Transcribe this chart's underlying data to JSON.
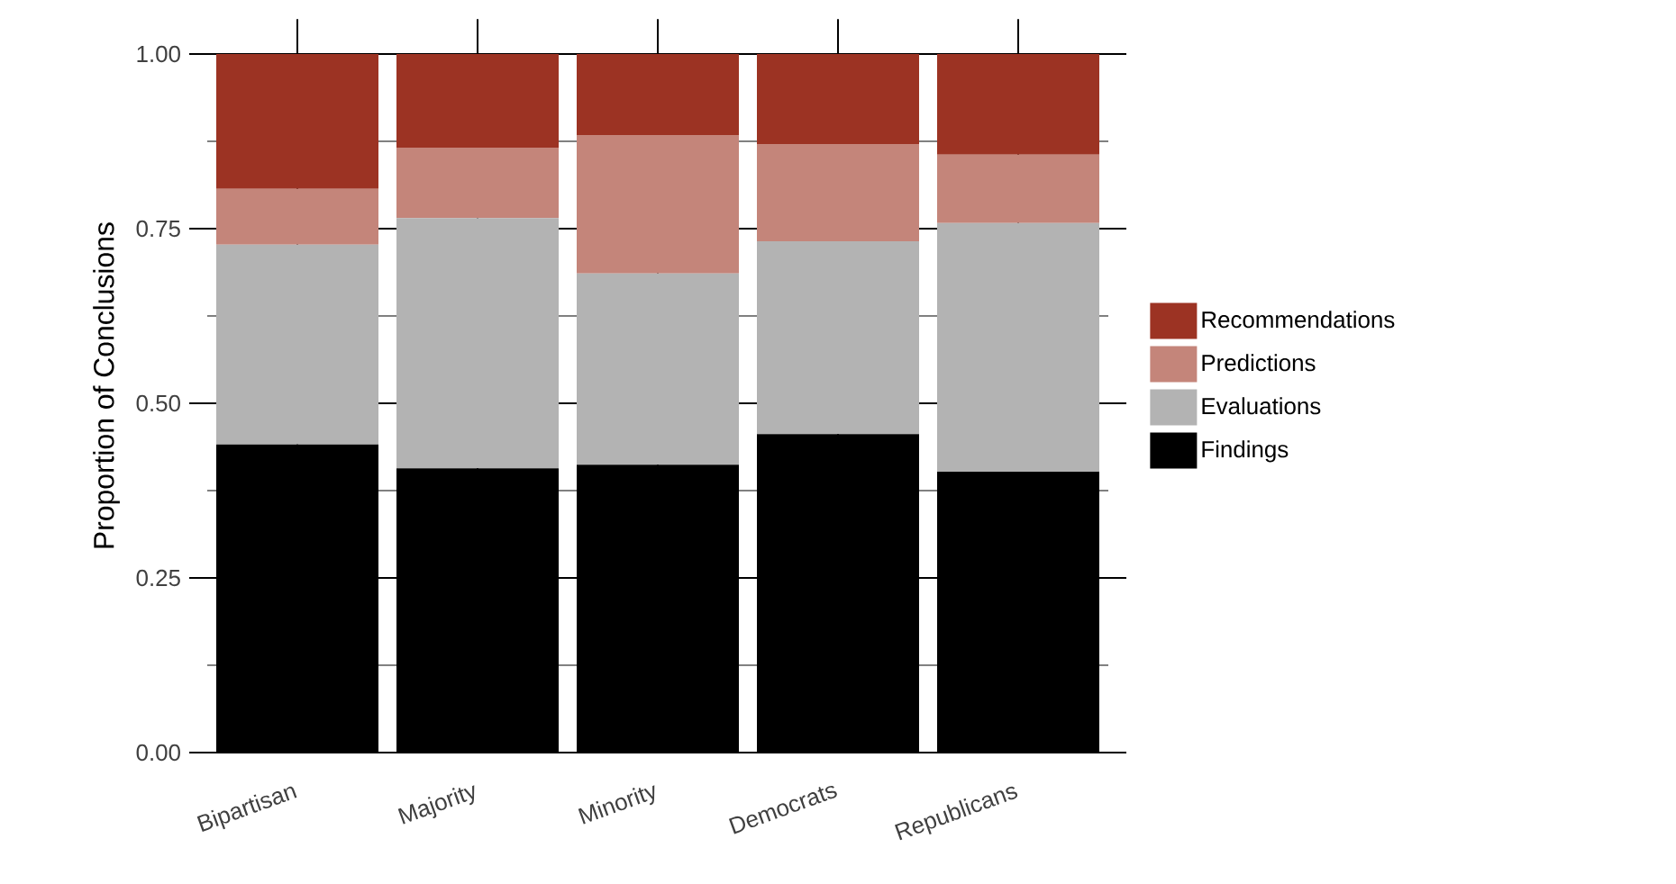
{
  "chart_data": {
    "type": "bar",
    "stacked": true,
    "ylabel": "Proportion of Conclusions",
    "categories": [
      "Bipartisan",
      "Majority",
      "Minority",
      "Democrats",
      "Republicans"
    ],
    "series": [
      {
        "name": "Findings",
        "color": "#000000",
        "values": [
          0.441,
          0.407,
          0.412,
          0.456,
          0.402
        ]
      },
      {
        "name": "Evaluations",
        "color": "#b3b3b3",
        "values": [
          0.286,
          0.358,
          0.274,
          0.276,
          0.356
        ]
      },
      {
        "name": "Predictions",
        "color": "#c4857a",
        "values": [
          0.08,
          0.101,
          0.198,
          0.139,
          0.098
        ]
      },
      {
        "name": "Recommendations",
        "color": "#9c3323",
        "values": [
          0.193,
          0.134,
          0.116,
          0.129,
          0.144
        ]
      }
    ],
    "ylim": [
      0,
      1.05
    ],
    "yticks": [
      {
        "value": 0,
        "label": "0.00"
      },
      {
        "value": 0.25,
        "label": "0.25"
      },
      {
        "value": 0.5,
        "label": "0.50"
      },
      {
        "value": 0.75,
        "label": "0.75"
      },
      {
        "value": 1,
        "label": "1.00"
      }
    ],
    "grid": true,
    "legend": "right"
  }
}
